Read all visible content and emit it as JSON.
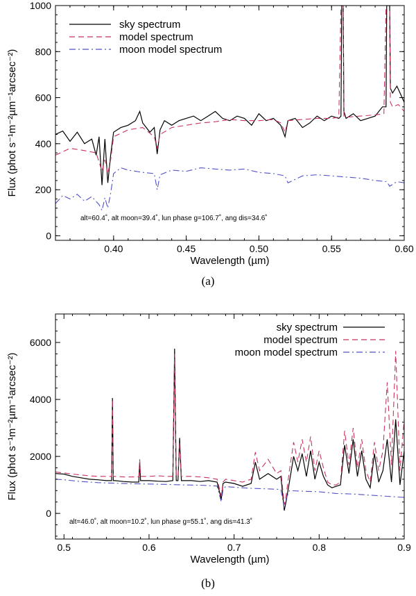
{
  "chart_data": [
    {
      "type": "line",
      "panel_label": "(a)",
      "xlabel": "Wavelength (µm)",
      "ylabel": "Flux (phot s⁻¹m⁻²µm⁻¹arcsec⁻²)",
      "xlim": [
        0.36,
        0.6
      ],
      "ylim": [
        -20,
        1000
      ],
      "xticks": [
        0.4,
        0.45,
        0.5,
        0.55,
        0.6
      ],
      "xtick_labels": [
        "0.40",
        "0.45",
        "0.50",
        "0.55",
        "0.60"
      ],
      "yticks": [
        0,
        200,
        400,
        600,
        800,
        1000
      ],
      "ytick_labels": [
        "0",
        "200",
        "400",
        "600",
        "800",
        "1000"
      ],
      "legend_position": "top-left",
      "annotation": "alt=60.4˚, alt moon=39.4˚, lun phase g=106.7˚, ang dis=34.6˚",
      "series": [
        {
          "name": "sky spectrum",
          "style": "solid",
          "color": "#000000",
          "x": [
            0.36,
            0.365,
            0.37,
            0.375,
            0.38,
            0.385,
            0.388,
            0.39,
            0.392,
            0.394,
            0.396,
            0.398,
            0.4,
            0.405,
            0.41,
            0.415,
            0.418,
            0.42,
            0.425,
            0.428,
            0.43,
            0.432,
            0.435,
            0.44,
            0.445,
            0.45,
            0.455,
            0.46,
            0.465,
            0.47,
            0.475,
            0.48,
            0.485,
            0.49,
            0.495,
            0.5,
            0.505,
            0.51,
            0.515,
            0.518,
            0.52,
            0.525,
            0.53,
            0.535,
            0.54,
            0.545,
            0.55,
            0.555,
            0.5565,
            0.557,
            0.558,
            0.5585,
            0.56,
            0.565,
            0.57,
            0.575,
            0.58,
            0.585,
            0.5875,
            0.588,
            0.59,
            0.5905,
            0.592,
            0.595,
            0.6
          ],
          "values": [
            440,
            455,
            410,
            450,
            400,
            420,
            350,
            430,
            220,
            420,
            230,
            350,
            450,
            470,
            480,
            500,
            540,
            490,
            450,
            470,
            355,
            460,
            500,
            480,
            500,
            510,
            520,
            500,
            520,
            540,
            510,
            500,
            520,
            510,
            480,
            530,
            500,
            510,
            480,
            430,
            500,
            510,
            470,
            490,
            520,
            500,
            520,
            510,
            520,
            1000,
            1000,
            540,
            510,
            530,
            500,
            510,
            520,
            560,
            560,
            1000,
            1000,
            640,
            620,
            650,
            580
          ]
        },
        {
          "name": "model spectrum",
          "style": "dashed",
          "color": "#c8325a",
          "x": [
            0.36,
            0.37,
            0.38,
            0.388,
            0.392,
            0.394,
            0.396,
            0.398,
            0.4,
            0.41,
            0.42,
            0.428,
            0.43,
            0.432,
            0.44,
            0.45,
            0.46,
            0.47,
            0.48,
            0.49,
            0.5,
            0.51,
            0.515,
            0.518,
            0.52,
            0.53,
            0.54,
            0.55,
            0.555,
            0.5565,
            0.557,
            0.558,
            0.5585,
            0.56,
            0.57,
            0.58,
            0.586,
            0.5875,
            0.588,
            0.59,
            0.5905,
            0.592,
            0.596,
            0.6
          ],
          "values": [
            350,
            380,
            370,
            360,
            280,
            330,
            270,
            330,
            430,
            460,
            470,
            430,
            380,
            440,
            470,
            480,
            490,
            495,
            505,
            500,
            500,
            505,
            490,
            450,
            500,
            505,
            510,
            510,
            515,
            1000,
            1000,
            1000,
            520,
            515,
            520,
            525,
            530,
            1000,
            1000,
            1000,
            580,
            560,
            570,
            540
          ]
        },
        {
          "name": "moon model spectrum",
          "style": "dashdot",
          "color": "#5050c8",
          "x": [
            0.36,
            0.365,
            0.37,
            0.375,
            0.38,
            0.385,
            0.39,
            0.392,
            0.394,
            0.396,
            0.398,
            0.4,
            0.405,
            0.41,
            0.42,
            0.428,
            0.43,
            0.432,
            0.44,
            0.45,
            0.46,
            0.47,
            0.48,
            0.49,
            0.5,
            0.51,
            0.518,
            0.52,
            0.53,
            0.54,
            0.55,
            0.56,
            0.57,
            0.58,
            0.588,
            0.59,
            0.595,
            0.6
          ],
          "values": [
            140,
            175,
            160,
            180,
            150,
            170,
            135,
            110,
            165,
            120,
            185,
            270,
            295,
            285,
            275,
            270,
            200,
            265,
            285,
            280,
            295,
            290,
            285,
            290,
            275,
            270,
            260,
            230,
            260,
            265,
            260,
            255,
            250,
            240,
            235,
            215,
            235,
            230
          ]
        }
      ]
    },
    {
      "type": "line",
      "panel_label": "(b)",
      "xlabel": "Wavelength (µm)",
      "ylabel": "Flux (phot s⁻¹m⁻²µm⁻¹arcsec⁻²)",
      "xlim": [
        0.49,
        0.9
      ],
      "ylim": [
        -900,
        7000
      ],
      "xticks": [
        0.5,
        0.6,
        0.7,
        0.8,
        0.9
      ],
      "xtick_labels": [
        "0.5",
        "0.6",
        "0.7",
        "0.8",
        "0.9"
      ],
      "yticks": [
        0,
        2000,
        4000,
        6000
      ],
      "ytick_labels": [
        "0",
        "2000",
        "4000",
        "6000"
      ],
      "legend_position": "top-right",
      "annotation": "alt=46.0˚, alt moon=10.2˚, lun phase g=55.1˚, ang dis=41.3˚",
      "series": [
        {
          "name": "sky spectrum",
          "style": "solid",
          "color": "#000000",
          "x": [
            0.49,
            0.5,
            0.51,
            0.52,
            0.53,
            0.54,
            0.55,
            0.556,
            0.557,
            0.558,
            0.56,
            0.57,
            0.58,
            0.588,
            0.589,
            0.59,
            0.6,
            0.61,
            0.62,
            0.628,
            0.63,
            0.632,
            0.634,
            0.636,
            0.638,
            0.64,
            0.65,
            0.66,
            0.67,
            0.68,
            0.685,
            0.687,
            0.69,
            0.7,
            0.71,
            0.72,
            0.725,
            0.73,
            0.74,
            0.75,
            0.755,
            0.759,
            0.761,
            0.765,
            0.77,
            0.775,
            0.78,
            0.785,
            0.79,
            0.795,
            0.8,
            0.805,
            0.81,
            0.815,
            0.82,
            0.825,
            0.83,
            0.835,
            0.84,
            0.845,
            0.85,
            0.855,
            0.86,
            0.865,
            0.87,
            0.875,
            0.88,
            0.885,
            0.89,
            0.895,
            0.9
          ],
          "values": [
            1400,
            1380,
            1300,
            1250,
            1200,
            1180,
            1150,
            1150,
            4050,
            1150,
            1150,
            1120,
            1100,
            1100,
            1800,
            1150,
            1150,
            1130,
            1120,
            1150,
            5780,
            1150,
            1150,
            2650,
            1150,
            1150,
            1150,
            1120,
            1150,
            1100,
            500,
            1050,
            1100,
            1050,
            950,
            1050,
            1800,
            1200,
            1400,
            1200,
            1300,
            100,
            400,
            1100,
            2000,
            1500,
            2100,
            1300,
            2200,
            1200,
            1800,
            1300,
            1000,
            900,
            950,
            1000,
            2400,
            1400,
            2600,
            1300,
            2200,
            1200,
            900,
            2100,
            1100,
            1500,
            2600,
            1100,
            3300,
            1000,
            2200
          ]
        },
        {
          "name": "model spectrum",
          "style": "dashed",
          "color": "#c8325a",
          "x": [
            0.49,
            0.5,
            0.51,
            0.52,
            0.53,
            0.54,
            0.55,
            0.556,
            0.557,
            0.558,
            0.56,
            0.57,
            0.58,
            0.588,
            0.589,
            0.59,
            0.6,
            0.61,
            0.62,
            0.628,
            0.63,
            0.632,
            0.634,
            0.636,
            0.638,
            0.64,
            0.65,
            0.66,
            0.67,
            0.68,
            0.685,
            0.687,
            0.69,
            0.7,
            0.71,
            0.72,
            0.725,
            0.73,
            0.74,
            0.75,
            0.755,
            0.759,
            0.761,
            0.765,
            0.77,
            0.775,
            0.78,
            0.785,
            0.79,
            0.795,
            0.8,
            0.805,
            0.81,
            0.815,
            0.82,
            0.825,
            0.83,
            0.835,
            0.84,
            0.845,
            0.85,
            0.855,
            0.86,
            0.865,
            0.87,
            0.875,
            0.88,
            0.885,
            0.89,
            0.895,
            0.9
          ],
          "values": [
            1450,
            1420,
            1380,
            1350,
            1320,
            1300,
            1300,
            1300,
            4000,
            1300,
            1300,
            1280,
            1280,
            1280,
            1900,
            1300,
            1300,
            1320,
            1300,
            1300,
            5600,
            1300,
            1300,
            2500,
            1300,
            1300,
            1300,
            1280,
            1250,
            1200,
            600,
            1100,
            1200,
            1150,
            1100,
            1200,
            2150,
            1500,
            1900,
            1400,
            1500,
            300,
            600,
            1500,
            2500,
            1800,
            2600,
            1800,
            2700,
            1500,
            2200,
            1600,
            1100,
            1000,
            1000,
            1100,
            2900,
            1700,
            3000,
            1600,
            2600,
            1500,
            1100,
            2500,
            1500,
            2200,
            4600,
            1700,
            5700,
            1500,
            3300
          ]
        },
        {
          "name": "moon model spectrum",
          "style": "dashdot",
          "color": "#5050c8",
          "x": [
            0.49,
            0.5,
            0.52,
            0.54,
            0.56,
            0.58,
            0.6,
            0.62,
            0.64,
            0.66,
            0.68,
            0.685,
            0.687,
            0.69,
            0.7,
            0.72,
            0.74,
            0.755,
            0.759,
            0.761,
            0.765,
            0.78,
            0.8,
            0.82,
            0.84,
            0.86,
            0.88,
            0.9
          ],
          "values": [
            1200,
            1180,
            1120,
            1080,
            1060,
            1040,
            1030,
            1020,
            1000,
            990,
            960,
            400,
            850,
            940,
            920,
            880,
            860,
            840,
            200,
            500,
            800,
            780,
            760,
            700,
            680,
            640,
            600,
            560
          ]
        }
      ]
    }
  ]
}
